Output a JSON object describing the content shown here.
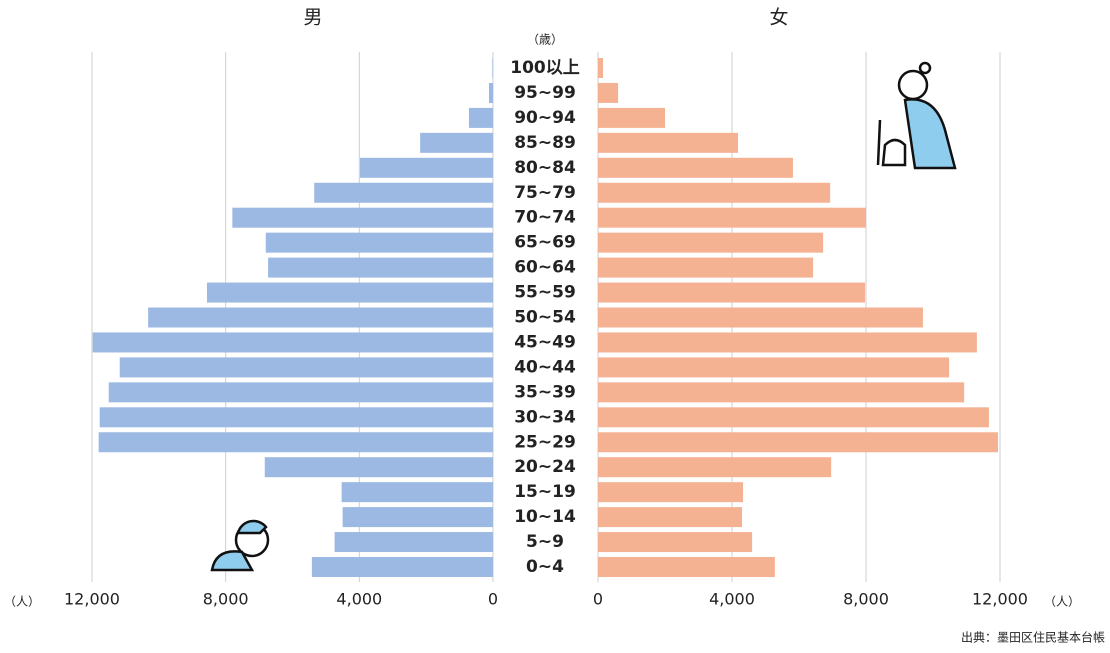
{
  "chart_data": {
    "type": "pyramid",
    "category_label": "（歳）",
    "x_label": "（人）",
    "source": "出典：墨田区住民基本台帳",
    "categories": [
      "100以上",
      "95~99",
      "90~94",
      "85~89",
      "80~84",
      "75~79",
      "70~74",
      "65~69",
      "60~64",
      "55~59",
      "50~54",
      "45~49",
      "40~44",
      "35~39",
      "30~34",
      "25~29",
      "20~24",
      "15~19",
      "10~14",
      "5~9",
      "0~4"
    ],
    "series": [
      {
        "name": "男",
        "color": "#9bb9e2",
        "values": [
          20,
          120,
          720,
          2180,
          3980,
          5350,
          7800,
          6800,
          6730,
          8560,
          10320,
          11980,
          11170,
          11500,
          11770,
          11800,
          6830,
          4530,
          4500,
          4740,
          5420
        ]
      },
      {
        "name": "女",
        "color": "#f5b293",
        "values": [
          150,
          600,
          2000,
          4180,
          5820,
          6930,
          8000,
          6720,
          6420,
          7970,
          9700,
          11310,
          10480,
          10930,
          11670,
          11940,
          6960,
          4330,
          4300,
          4600,
          5280
        ]
      }
    ],
    "xlim": [
      0,
      12000
    ],
    "xticks": [
      0,
      {
        "value": 4000,
        "label": "4,000"
      },
      {
        "value": 8000,
        "label": "8,000"
      },
      {
        "value": 12000,
        "label": "12,000"
      }
    ],
    "grid": true
  }
}
